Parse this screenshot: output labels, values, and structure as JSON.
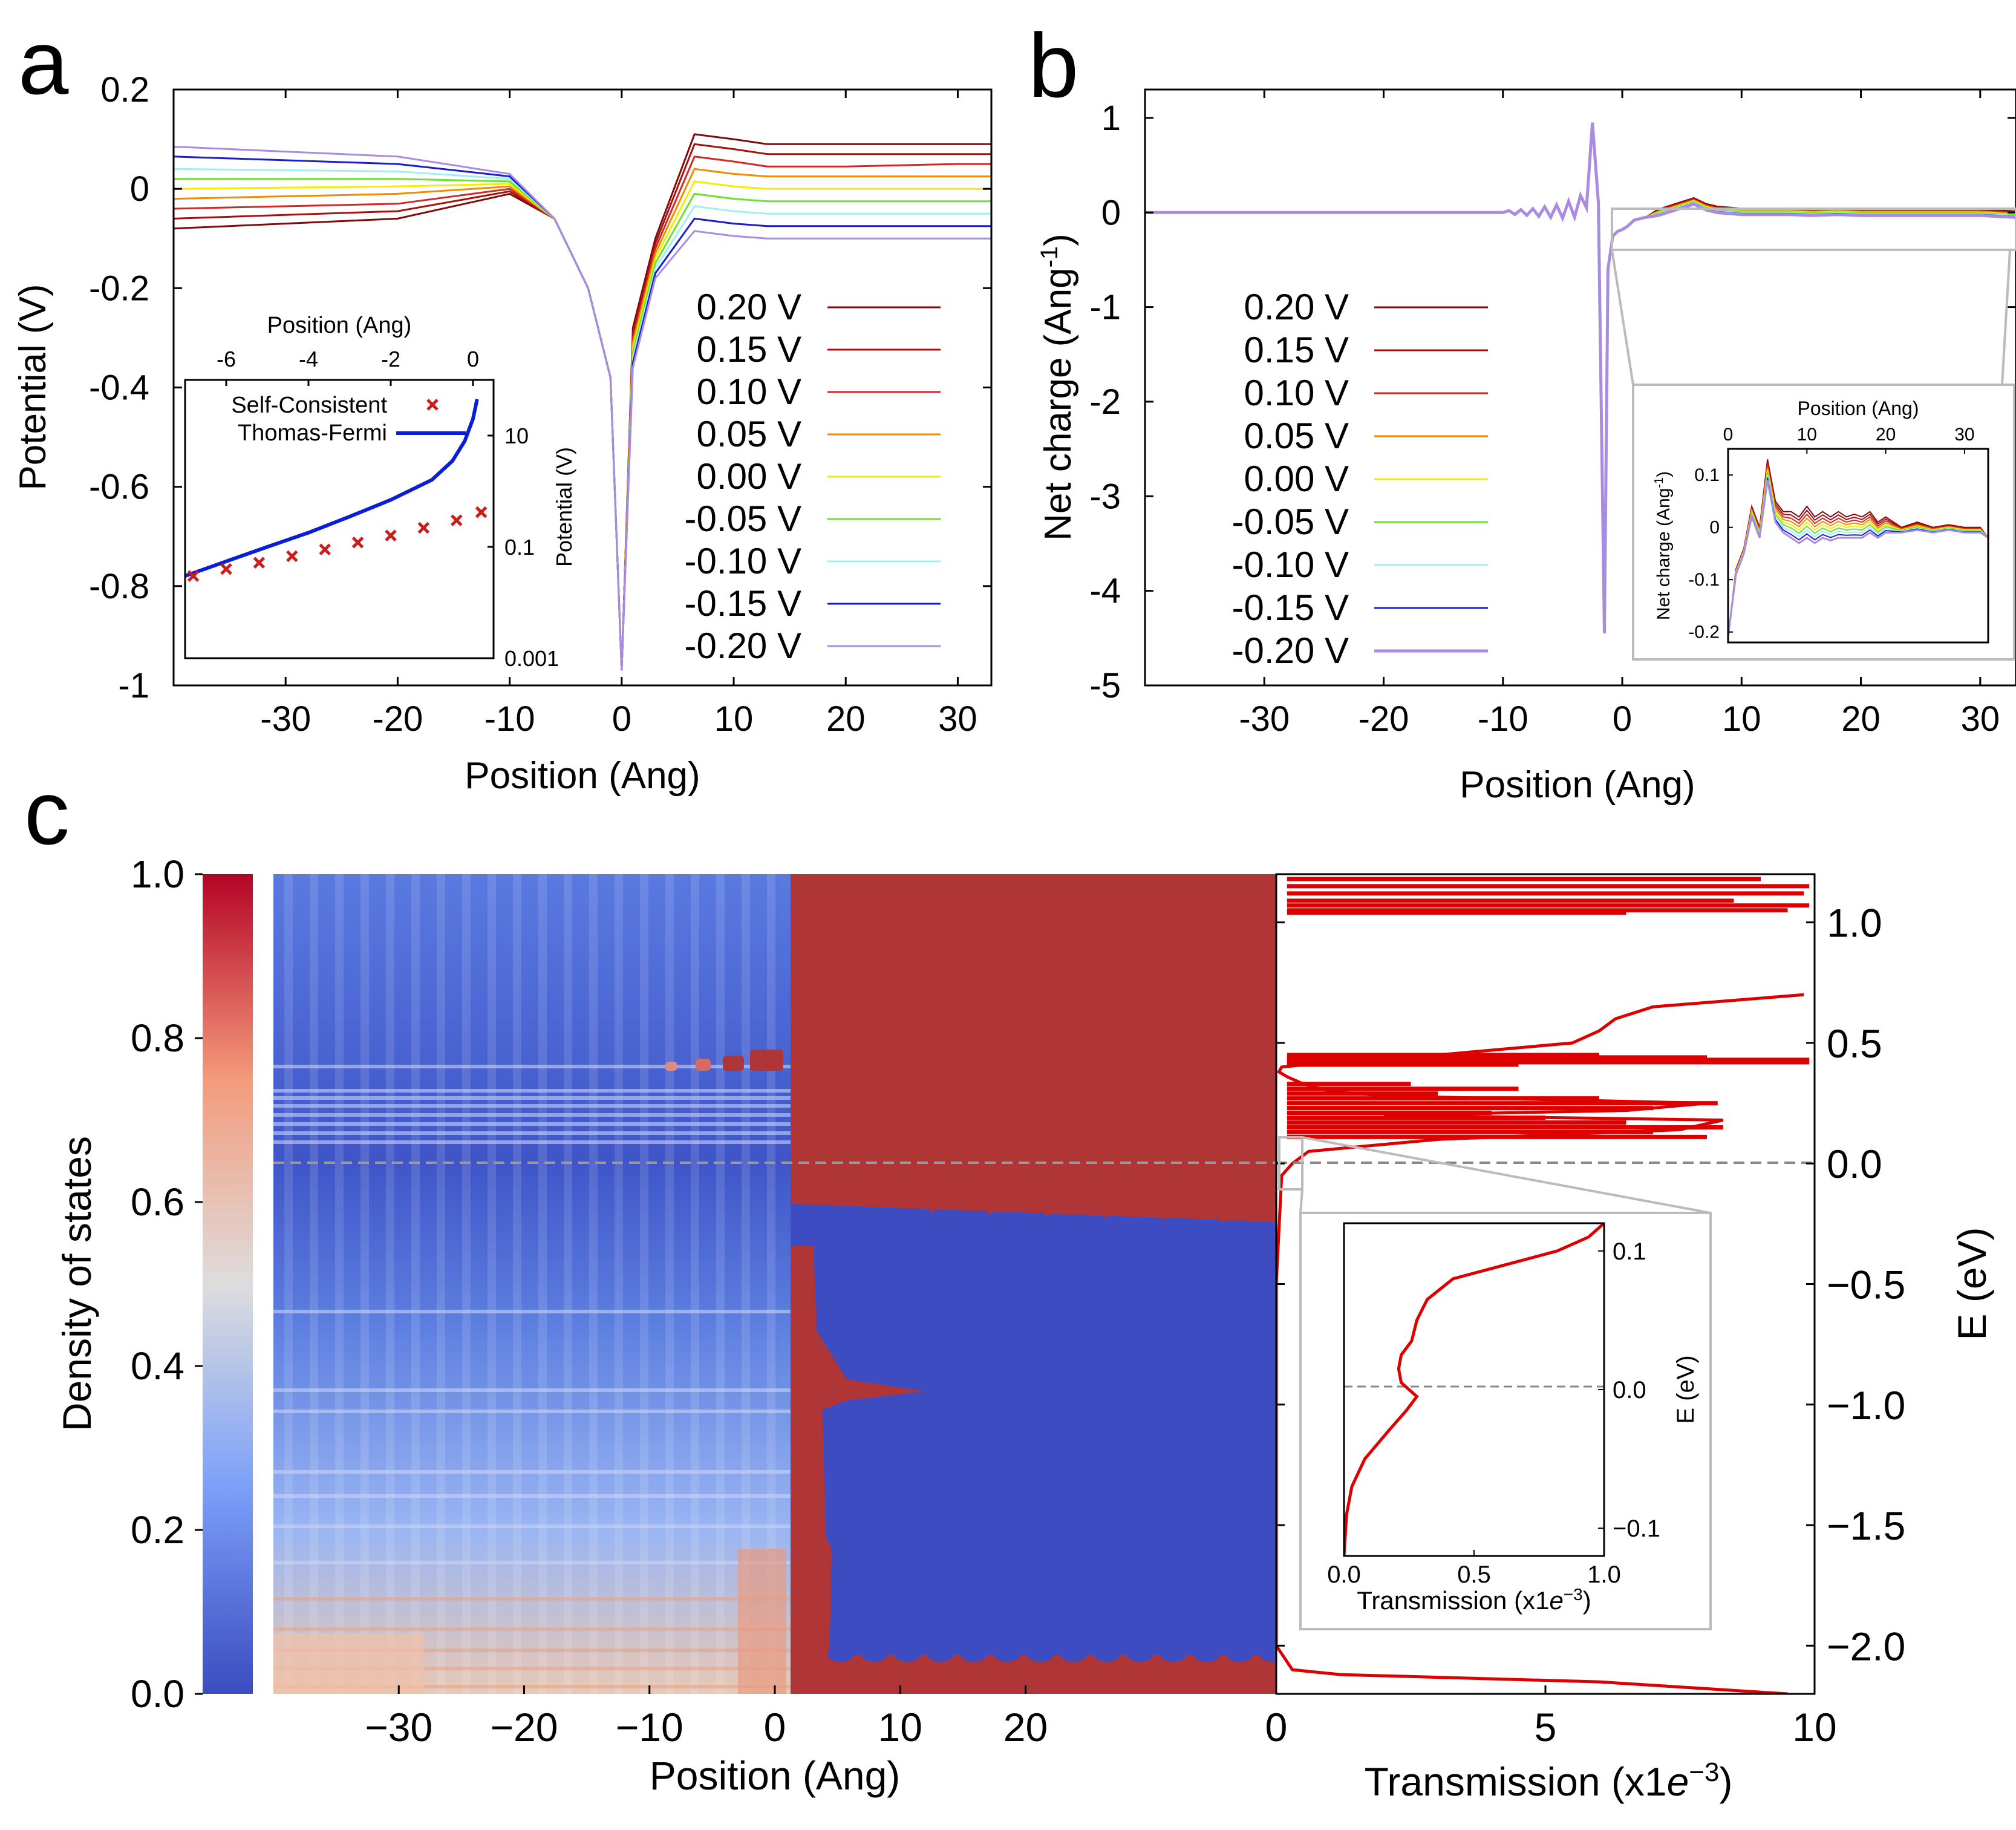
{
  "colors": {
    "bias": [
      "#7f0a0a",
      "#a80f0f",
      "#d42727",
      "#f08c00",
      "#f2ee00",
      "#6ce22a",
      "#9ff0f2",
      "#1c1cc8",
      "#a98be0"
    ],
    "tf_line": "#0a1ed6",
    "sc_marker": "#c81e1e",
    "transmission": "#dd0000",
    "cmap_low": "#3b4cc0",
    "cmap_mid": "#dddddd",
    "cmap_high": "#b40426",
    "grey_box": "#bbbbbb"
  },
  "panel_a": {
    "letter": "a",
    "chart_data": {
      "type": "line",
      "xlabel": "Position (Ang)",
      "ylabel": "Potential (V)",
      "xlim": [
        -40,
        33
      ],
      "ylim": [
        -1,
        0.2
      ],
      "xticks": [
        "-30",
        "-20",
        "-10",
        "0",
        "10",
        "20",
        "30"
      ],
      "yticks": [
        "0.2",
        "0",
        "-0.2",
        "-0.4",
        "-0.6",
        "-0.8",
        "-1"
      ],
      "legend_position": "right",
      "series": [
        {
          "name": "0.20 V",
          "x": [
            -40,
            -20,
            -10,
            -6,
            -3,
            -1,
            0,
            1,
            3,
            6.5,
            10,
            13,
            20,
            30,
            33
          ],
          "y": [
            -0.08,
            -0.06,
            -0.01,
            -0.06,
            -0.2,
            -0.38,
            -0.97,
            -0.28,
            -0.1,
            0.11,
            0.1,
            0.09,
            0.09,
            0.09,
            0.09
          ]
        },
        {
          "name": "0.15 V",
          "x": [
            -40,
            -20,
            -10,
            -6,
            -3,
            -1,
            0,
            1,
            3,
            6.5,
            10,
            13,
            20,
            30,
            33
          ],
          "y": [
            -0.06,
            -0.045,
            -0.005,
            -0.06,
            -0.2,
            -0.38,
            -0.97,
            -0.29,
            -0.11,
            0.09,
            0.08,
            0.07,
            0.07,
            0.07,
            0.07
          ]
        },
        {
          "name": "0.10 V",
          "x": [
            -40,
            -20,
            -10,
            -6,
            -3,
            -1,
            0,
            1,
            3,
            6.5,
            10,
            13,
            20,
            30,
            33
          ],
          "y": [
            -0.04,
            -0.03,
            0.0,
            -0.06,
            -0.2,
            -0.38,
            -0.97,
            -0.3,
            -0.12,
            0.065,
            0.055,
            0.045,
            0.045,
            0.05,
            0.05
          ]
        },
        {
          "name": "0.05 V",
          "x": [
            -40,
            -20,
            -10,
            -6,
            -3,
            -1,
            0,
            1,
            3,
            6.5,
            10,
            13,
            20,
            30,
            33
          ],
          "y": [
            -0.02,
            -0.01,
            0.005,
            -0.06,
            -0.2,
            -0.38,
            -0.97,
            -0.31,
            -0.13,
            0.04,
            0.03,
            0.025,
            0.025,
            0.025,
            0.025
          ]
        },
        {
          "name": "0.00 V",
          "x": [
            -40,
            -20,
            -10,
            -6,
            -3,
            -1,
            0,
            1,
            3,
            6.5,
            10,
            13,
            20,
            30,
            33
          ],
          "y": [
            0.0,
            0.005,
            0.01,
            -0.06,
            -0.2,
            -0.38,
            -0.97,
            -0.32,
            -0.14,
            0.015,
            0.005,
            0.0,
            0.0,
            0.0,
            0.0
          ]
        },
        {
          "name": "-0.05 V",
          "x": [
            -40,
            -20,
            -10,
            -6,
            -3,
            -1,
            0,
            1,
            3,
            6.5,
            10,
            13,
            20,
            30,
            33
          ],
          "y": [
            0.02,
            0.02,
            0.015,
            -0.06,
            -0.2,
            -0.38,
            -0.97,
            -0.33,
            -0.15,
            -0.01,
            -0.02,
            -0.025,
            -0.025,
            -0.025,
            -0.025
          ]
        },
        {
          "name": "-0.10 V",
          "x": [
            -40,
            -20,
            -10,
            -6,
            -3,
            -1,
            0,
            1,
            3,
            6.5,
            10,
            13,
            20,
            30,
            33
          ],
          "y": [
            0.04,
            0.035,
            0.02,
            -0.06,
            -0.2,
            -0.38,
            -0.97,
            -0.34,
            -0.16,
            -0.035,
            -0.045,
            -0.05,
            -0.05,
            -0.05,
            -0.05
          ]
        },
        {
          "name": "-0.15 V",
          "x": [
            -40,
            -20,
            -10,
            -6,
            -3,
            -1,
            0,
            1,
            3,
            6.5,
            10,
            13,
            20,
            30,
            33
          ],
          "y": [
            0.065,
            0.05,
            0.025,
            -0.06,
            -0.2,
            -0.38,
            -0.97,
            -0.35,
            -0.17,
            -0.06,
            -0.07,
            -0.075,
            -0.075,
            -0.075,
            -0.075
          ]
        },
        {
          "name": "-0.20 V",
          "x": [
            -40,
            -20,
            -10,
            -6,
            -3,
            -1,
            0,
            1,
            3,
            6.5,
            10,
            13,
            20,
            30,
            33
          ],
          "y": [
            0.085,
            0.065,
            0.03,
            -0.06,
            -0.2,
            -0.38,
            -0.97,
            -0.36,
            -0.18,
            -0.085,
            -0.095,
            -0.1,
            -0.1,
            -0.1,
            -0.1
          ]
        }
      ]
    },
    "inset": {
      "xlabel": "Position (Ang)",
      "ylabel": "Potential (V)",
      "xticks": [
        "-6",
        "-4",
        "-2",
        "0"
      ],
      "yticks": [
        "10",
        "0.1",
        "0.001"
      ],
      "yscale": "log",
      "chart_data": {
        "type": "line",
        "xlim": [
          -7,
          0.5
        ],
        "ylim": [
          0.001,
          100
        ],
        "series": [
          {
            "name": "Thomas-Fermi",
            "x": [
              -7,
              -6,
              -5,
              -4,
              -3,
              -2,
              -1,
              -0.5,
              -0.2,
              0.0,
              0.1
            ],
            "y": [
              0.03,
              0.055,
              0.1,
              0.18,
              0.35,
              0.7,
              1.6,
              3.5,
              8,
              20,
              45
            ]
          },
          {
            "name": "Self-Consistent",
            "x": [
              -6.8,
              -6.0,
              -5.2,
              -4.4,
              -3.6,
              -2.8,
              -2.0,
              -1.2,
              -0.4,
              0.2
            ],
            "y": [
              0.03,
              0.04,
              0.052,
              0.068,
              0.09,
              0.12,
              0.16,
              0.22,
              0.3,
              0.42
            ]
          }
        ]
      }
    }
  },
  "panel_b": {
    "letter": "b",
    "chart_data": {
      "type": "line",
      "xlabel": "Position (Ang)",
      "ylabel_main": "Net charge (Ang",
      "ylabel_sup": "-1",
      "ylabel_close": ")",
      "xlim": [
        -40,
        33
      ],
      "ylim": [
        -5,
        1.3
      ],
      "xticks": [
        "-30",
        "-20",
        "-10",
        "0",
        "10",
        "20",
        "30"
      ],
      "yticks": [
        "1",
        "0",
        "-1",
        "-2",
        "-3",
        "-4",
        "-5"
      ],
      "legend_position": "left",
      "series_names": [
        "0.20 V",
        "0.15 V",
        "0.10 V",
        "0.05 V",
        "0.00 V",
        "-0.05 V",
        "-0.10 V",
        "-0.15 V",
        "-0.20 V"
      ],
      "x": [
        -40,
        -10,
        -9.5,
        -9,
        -8.5,
        -8,
        -7.5,
        -7,
        -6.5,
        -6,
        -5.5,
        -5,
        -4.5,
        -4,
        -3.5,
        -3,
        -2.5,
        -2,
        -1.5,
        -1.2,
        -0.8,
        -0.4,
        0,
        0.4,
        1,
        2,
        3,
        4,
        5,
        6,
        7,
        8,
        9,
        10,
        12,
        14,
        16,
        18,
        20,
        25,
        30,
        33
      ],
      "y": [
        0,
        0,
        0.02,
        -0.02,
        0.03,
        -0.03,
        0.04,
        -0.04,
        0.06,
        -0.05,
        0.08,
        -0.06,
        0.12,
        -0.05,
        0.18,
        0.05,
        0.95,
        0.1,
        -4.45,
        -0.6,
        -0.25,
        -0.2,
        -0.18,
        -0.15,
        -0.08,
        -0.05,
        0.0,
        0.04,
        0.08,
        0.12,
        0.06,
        0.03,
        0.02,
        0.01,
        0.01,
        0.01,
        0.0,
        0.01,
        0.0,
        0.0,
        0.0,
        -0.02
      ]
    },
    "inset": {
      "xlabel": "Position (Ang)",
      "ylabel_main": "Net charge (Ang",
      "ylabel_sup": "-1",
      "ylabel_close": ")",
      "xticks": [
        "0",
        "10",
        "20",
        "30"
      ],
      "yticks": [
        "0.1",
        "0",
        "-0.1",
        "-0.2"
      ],
      "chart_data": {
        "type": "line",
        "xlim": [
          0,
          33
        ],
        "ylim": [
          -0.22,
          0.15
        ],
        "x": [
          0,
          1,
          2,
          3,
          4,
          5,
          6,
          7,
          8,
          9,
          10,
          11,
          12,
          13,
          14,
          15,
          16,
          17,
          18,
          19,
          20,
          22,
          24,
          26,
          28,
          30,
          32,
          33
        ],
        "y_top": [
          -0.21,
          -0.08,
          -0.04,
          0.04,
          0.0,
          0.13,
          0.05,
          0.03,
          0.03,
          0.02,
          0.04,
          0.02,
          0.03,
          0.02,
          0.03,
          0.02,
          0.025,
          0.02,
          0.03,
          0.01,
          0.02,
          0.0,
          0.01,
          0.0,
          0.005,
          0.0,
          0.0,
          -0.02
        ],
        "y_bottom": [
          -0.21,
          -0.09,
          -0.05,
          0.02,
          -0.02,
          0.09,
          0.01,
          -0.01,
          -0.02,
          -0.03,
          -0.02,
          -0.03,
          -0.02,
          -0.025,
          -0.02,
          -0.02,
          -0.02,
          -0.02,
          -0.01,
          -0.02,
          -0.01,
          -0.01,
          -0.005,
          -0.01,
          -0.005,
          -0.01,
          -0.01,
          -0.02
        ]
      }
    }
  },
  "panel_c": {
    "letter": "c",
    "colorbar": {
      "label": "Density of states",
      "ticks": [
        "1.0",
        "0.8",
        "0.6",
        "0.4",
        "0.2",
        "0.0"
      ]
    },
    "heatmap": {
      "type": "heatmap",
      "xlabel": "Position (Ang)",
      "xlim": [
        -40,
        40
      ],
      "ylim": [
        -2.2,
        1.2
      ],
      "xticks": [
        "−30",
        "−20",
        "−10",
        "0",
        "10",
        "20",
        "0"
      ],
      "fermi_level": 0.0
    },
    "transmission": {
      "chart_data": {
        "type": "line",
        "xlabel_main": "Transmission (x1",
        "xlabel_e": "e",
        "xlabel_sup": "−3",
        "xlabel_close": ")",
        "ylabel": "E (eV)",
        "xlim": [
          0,
          10
        ],
        "ylim": [
          -2.2,
          1.2
        ],
        "xticks": [
          "0",
          "5",
          "10"
        ],
        "yticks": [
          "1.0",
          "0.5",
          "0.0",
          "−0.5",
          "−1.0",
          "−1.5",
          "−2.0"
        ],
        "E": [
          -2.2,
          -2.15,
          -2.12,
          -2.1,
          -2.0,
          -1.0,
          -0.5,
          -0.05,
          0.0,
          0.05,
          0.1,
          0.14,
          0.18,
          0.2,
          0.22,
          0.25,
          0.28,
          0.3,
          0.33,
          0.36,
          0.38,
          0.4,
          0.42,
          0.45,
          0.5,
          0.55,
          0.6,
          0.65,
          0.7
        ],
        "T": [
          9.5,
          6.0,
          1.2,
          0.3,
          0.0,
          0.0,
          0.0,
          0.1,
          0.3,
          0.6,
          3.0,
          7.5,
          8.3,
          2.0,
          6.5,
          8.0,
          2.0,
          1.0,
          0.5,
          0.2,
          0.05,
          0.1,
          1.0,
          3.0,
          5.5,
          6.0,
          6.3,
          7.0,
          9.8
        ]
      },
      "inset": {
        "xlabel_main": "Transmission (x1",
        "xlabel_e": "e",
        "xlabel_sup": "−3",
        "xlabel_close": ")",
        "ylabel": "E (eV)",
        "xticks": [
          "0.0",
          "0.5",
          "1.0"
        ],
        "yticks": [
          "0.1",
          "0.0",
          "−0.1"
        ],
        "chart_data": {
          "type": "line",
          "xlim": [
            0,
            1
          ],
          "ylim": [
            -0.12,
            0.12
          ],
          "E": [
            -0.12,
            -0.09,
            -0.07,
            -0.05,
            -0.03,
            -0.015,
            -0.005,
            0.0,
            0.005,
            0.015,
            0.025,
            0.035,
            0.05,
            0.065,
            0.08,
            0.09,
            0.1,
            0.11,
            0.12
          ],
          "T": [
            0.0,
            0.01,
            0.03,
            0.08,
            0.17,
            0.24,
            0.28,
            0.25,
            0.22,
            0.21,
            0.22,
            0.26,
            0.28,
            0.32,
            0.42,
            0.62,
            0.82,
            0.94,
            1.0
          ]
        }
      }
    }
  }
}
